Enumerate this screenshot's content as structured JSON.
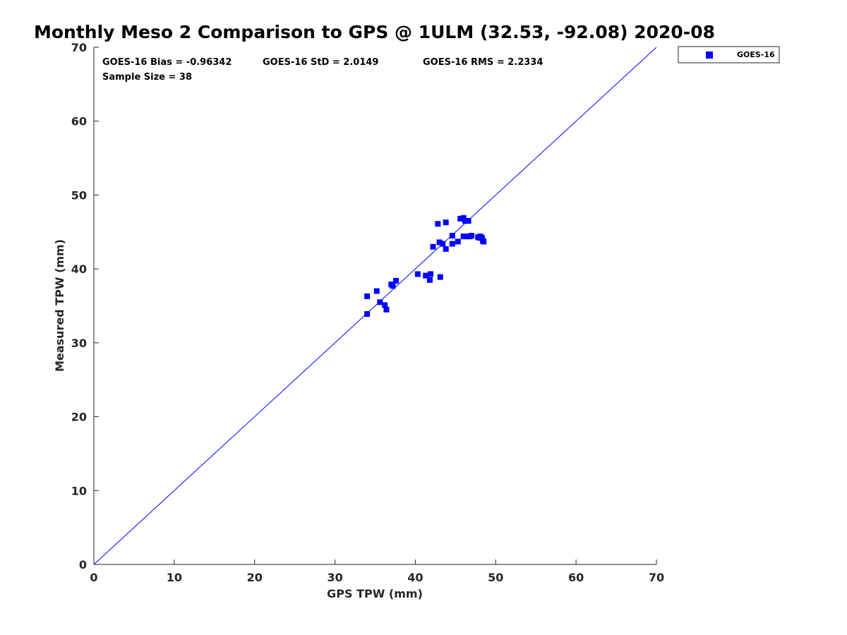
{
  "chart_data": {
    "type": "scatter",
    "title": "Monthly Meso 2 Comparison to GPS @ 1ULM (32.53, -92.08) 2020-08",
    "xlabel": "GPS TPW (mm)",
    "ylabel": "Measured TPW (mm)",
    "xlim": [
      0,
      70
    ],
    "ylim": [
      0,
      70
    ],
    "xticks": [
      "0",
      "10",
      "20",
      "30",
      "40",
      "50",
      "60",
      "70"
    ],
    "yticks": [
      "0",
      "10",
      "20",
      "30",
      "40",
      "50",
      "60",
      "70"
    ],
    "grid": false,
    "legend_position": "outside-top-right",
    "stats": {
      "bias": "GOES-16 Bias = -0.96342",
      "std": "GOES-16 StD = 2.0149",
      "rms": "GOES-16 RMS = 2.2334",
      "sample": "Sample Size = 38"
    },
    "reference_line": {
      "x": [
        0,
        70
      ],
      "y": [
        0,
        70
      ],
      "color": "#0000ff"
    },
    "series": [
      {
        "name": "GOES-16",
        "color": "#0000ff",
        "marker": "square",
        "points": [
          [
            34.0,
            36.3
          ],
          [
            34.0,
            33.9
          ],
          [
            35.2,
            37.0
          ],
          [
            35.6,
            35.5
          ],
          [
            36.2,
            35.1
          ],
          [
            36.4,
            34.5
          ],
          [
            37.0,
            37.9
          ],
          [
            37.2,
            37.7
          ],
          [
            37.6,
            38.4
          ],
          [
            40.3,
            39.3
          ],
          [
            41.3,
            39.1
          ],
          [
            41.8,
            38.5
          ],
          [
            41.9,
            39.3
          ],
          [
            42.2,
            43.0
          ],
          [
            42.8,
            46.1
          ],
          [
            43.0,
            43.6
          ],
          [
            43.1,
            38.9
          ],
          [
            43.4,
            43.4
          ],
          [
            43.8,
            46.3
          ],
          [
            43.8,
            42.7
          ],
          [
            44.6,
            44.5
          ],
          [
            44.6,
            43.4
          ],
          [
            45.3,
            43.7
          ],
          [
            45.6,
            46.8
          ],
          [
            46.0,
            46.9
          ],
          [
            46.0,
            44.4
          ],
          [
            46.2,
            46.5
          ],
          [
            46.4,
            44.4
          ],
          [
            46.6,
            46.5
          ],
          [
            46.7,
            44.4
          ],
          [
            46.8,
            44.4
          ],
          [
            47.0,
            44.5
          ],
          [
            47.8,
            44.3
          ],
          [
            48.0,
            44.2
          ],
          [
            48.1,
            44.4
          ],
          [
            48.3,
            44.2
          ],
          [
            48.4,
            43.8
          ],
          [
            48.5,
            43.7
          ]
        ]
      }
    ]
  }
}
